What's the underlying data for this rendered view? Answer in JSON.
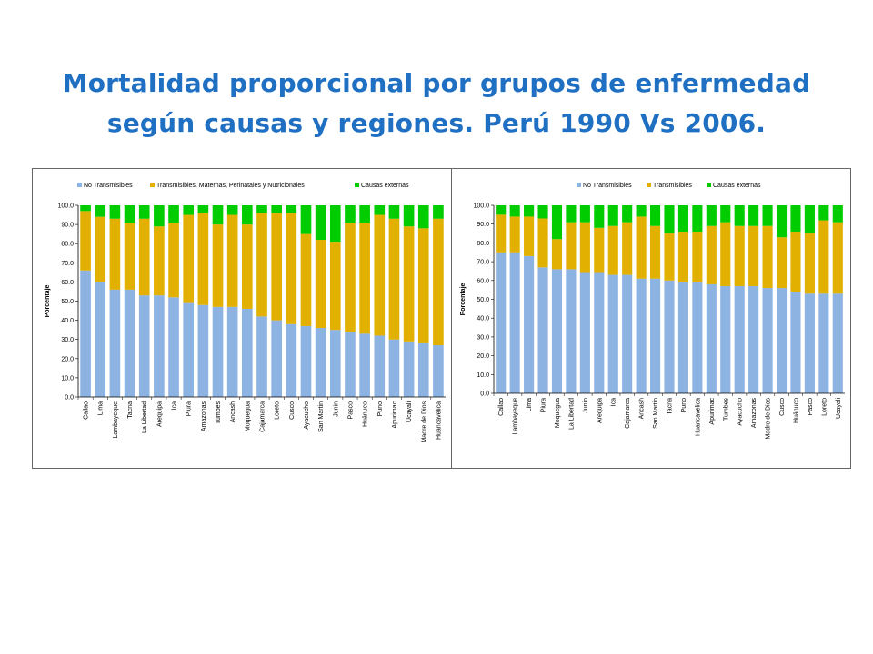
{
  "slide": {
    "title_line1": "Mortalidad proporcional por grupos de enfermedad",
    "title_line2": "según causas y regiones. Perú 1990 Vs 2006."
  },
  "chart_data": [
    {
      "type": "bar",
      "stacked": true,
      "title": "",
      "xlabel": "",
      "ylabel": "Porcentaje",
      "ylim": [
        0,
        100
      ],
      "yticks": [
        "0.0",
        "10.0",
        "20.0",
        "30.0",
        "40.0",
        "50.0",
        "60.0",
        "70.0",
        "80.0",
        "90.0",
        "100.0"
      ],
      "legend_position": "top",
      "categories": [
        "Callao",
        "Lima",
        "Lambayeque",
        "Tacna",
        "La Libertad",
        "Arequipa",
        "Ica",
        "Piura",
        "Amazonas",
        "Tumbes",
        "Ancash",
        "Moquegua",
        "Cajamarca",
        "Loreto",
        "Cusco",
        "Ayacucho",
        "San Martin",
        "Junin",
        "Pasco",
        "Huánuco",
        "Puno",
        "Apurimac",
        "Ucayali",
        "Madre de Dios",
        "Huancavelica"
      ],
      "series": [
        {
          "name": "No Transmisibles",
          "color": "#8db3e2",
          "values": [
            66,
            60,
            56,
            56,
            53,
            53,
            52,
            49,
            48,
            47,
            47,
            46,
            42,
            40,
            38,
            37,
            36,
            35,
            34,
            33,
            32,
            30,
            29,
            28,
            27
          ]
        },
        {
          "name": "Transmisibles, Maternas, Perinatales y Nutricionales",
          "color": "#e1b000",
          "values": [
            31,
            34,
            37,
            35,
            40,
            36,
            39,
            46,
            48,
            43,
            48,
            44,
            54,
            56,
            58,
            48,
            46,
            46,
            57,
            58,
            63,
            63,
            60,
            60,
            66
          ]
        },
        {
          "name": "Causas externas",
          "color": "#00cc00",
          "values": [
            3,
            6,
            7,
            9,
            7,
            11,
            9,
            5,
            4,
            10,
            5,
            10,
            4,
            4,
            4,
            15,
            18,
            19,
            9,
            9,
            5,
            7,
            11,
            12,
            7
          ]
        }
      ]
    },
    {
      "type": "bar",
      "stacked": true,
      "title": "",
      "xlabel": "",
      "ylabel": "Porcentaje",
      "ylim": [
        0,
        100
      ],
      "yticks": [
        "0.0",
        "10.0",
        "20.0",
        "30.0",
        "40.0",
        "50.0",
        "60.0",
        "70.0",
        "80.0",
        "90.0",
        "100.0"
      ],
      "legend_position": "top",
      "categories": [
        "Callao",
        "Lambayeque",
        "Lima",
        "Piura",
        "Moquegua",
        "La Libertad",
        "Junin",
        "Arequipa",
        "Ica",
        "Cajamarca",
        "Ancash",
        "San Martin",
        "Tacna",
        "Puno",
        "Huancavelica",
        "Apurimac",
        "Tumbes",
        "Ayacucho",
        "Amazonas",
        "Madre de Dios",
        "Cusco",
        "Huánuco",
        "Pasco",
        "Loreto",
        "Ucayali"
      ],
      "series": [
        {
          "name": "No Transmisibles",
          "color": "#8db3e2",
          "values": [
            75,
            75,
            73,
            67,
            66,
            66,
            64,
            64,
            63,
            63,
            61,
            61,
            60,
            59,
            59,
            58,
            57,
            57,
            57,
            56,
            56,
            54,
            53,
            53,
            53
          ]
        },
        {
          "name": "Transmisibles",
          "color": "#e1b000",
          "values": [
            20,
            19,
            21,
            26,
            16,
            25,
            27,
            24,
            26,
            28,
            33,
            28,
            25,
            27,
            27,
            31,
            34,
            32,
            32,
            33,
            27,
            32,
            32,
            39,
            38
          ]
        },
        {
          "name": "Causas externas",
          "color": "#00cc00",
          "values": [
            5,
            6,
            6,
            7,
            18,
            9,
            9,
            12,
            11,
            9,
            6,
            11,
            15,
            14,
            14,
            11,
            9,
            11,
            11,
            11,
            17,
            14,
            15,
            8,
            9
          ]
        }
      ]
    }
  ]
}
